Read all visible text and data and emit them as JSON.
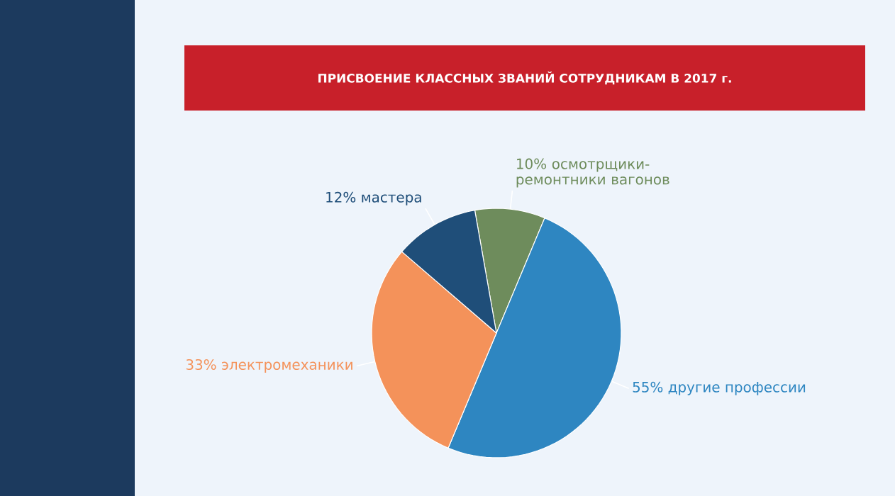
{
  "chart_data": {
    "type": "pie",
    "title": "ПРИСВОЕНИЕ КЛАССНЫХ ЗВАНИЙ СОТРУДНИКАМ В 2017 г.",
    "categories": [
      "осмотрщики-ремонтники вагонов",
      "другие профессии",
      "электромеханики",
      "мастера"
    ],
    "values": [
      10,
      55,
      33,
      12
    ],
    "value_labels": [
      "10%",
      "55%",
      "33%",
      "12%"
    ],
    "colors": [
      "#6e8c5c",
      "#2e86c1",
      "#f4925a",
      "#1f4e79"
    ]
  }
}
